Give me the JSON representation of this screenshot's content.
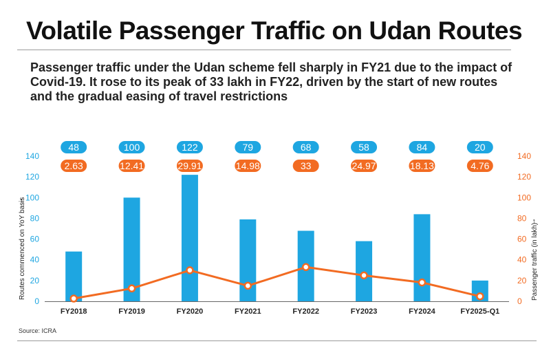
{
  "header": {
    "title": "Volatile Passenger Traffic on Udan Routes",
    "subtitle": "Passenger traffic under the Udan scheme fell sharply in FY21 due to the impact of Covid-19. It rose to its peak of 33 lakh in FY22, driven by the start of new routes and the gradual easing of travel restrictions"
  },
  "footer": {
    "source": "Source: ICRA"
  },
  "colors": {
    "bar": "#1ea6e1",
    "line": "#f26b22",
    "point_fill": "#ffffff",
    "axis_text": "#1a1a1a"
  },
  "chart_data": {
    "type": "bar",
    "categories": [
      "FY2018",
      "FY2019",
      "FY2020",
      "FY2021",
      "FY2022",
      "FY2023",
      "FY2024",
      "FY2025-Q1"
    ],
    "series": [
      {
        "type": "bar",
        "axis": "left",
        "values": [
          48,
          100,
          122,
          79,
          68,
          58,
          84,
          20
        ],
        "labels": [
          "48",
          "100",
          "122",
          "79",
          "68",
          "58",
          "84",
          "20"
        ]
      },
      {
        "type": "line",
        "axis": "right",
        "values": [
          2.63,
          12.41,
          29.91,
          14.98,
          33,
          24.97,
          18.13,
          4.76
        ],
        "labels": [
          "2.63",
          "12.41",
          "29.91",
          "14.98",
          "33",
          "24.97",
          "18.13",
          "4.76"
        ]
      }
    ],
    "ylabel_left": "Routes commenced on YoY basis",
    "ylabel_right": "Passenger traffic (in lakh)",
    "ylim_left": [
      0,
      140
    ],
    "ylim_right": [
      0,
      140
    ],
    "yticks_left": [
      0,
      20,
      40,
      60,
      80,
      100,
      120,
      140
    ],
    "yticks_right": [
      0,
      20,
      40,
      60,
      80,
      100,
      120,
      140
    ],
    "grid": false,
    "legend": "none"
  }
}
